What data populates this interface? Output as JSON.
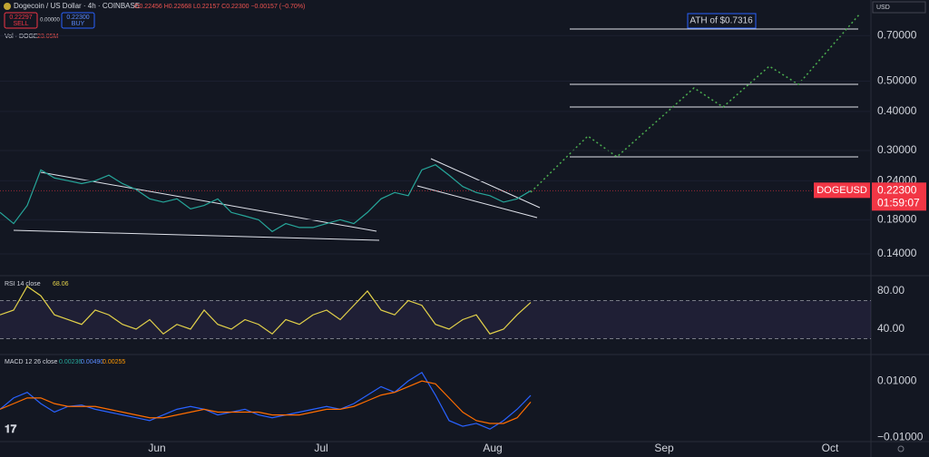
{
  "header": {
    "symbol": "Dogecoin / US Dollar · 4h · COINBASE",
    "ohlc": "O0.22456 H0.22668 L0.22157 C0.22300 −0.00157 (−0.70%)",
    "sell_price": "0.22297",
    "sell": "SELL",
    "spread": "0.00000",
    "buy_price": "0.22300",
    "buy": "BUY",
    "volume_label": "Vol · DOGE",
    "volume_value": "23.05M",
    "currency": "USD",
    "ath": "ATH of $0.7316"
  },
  "x_labels": [
    "Jun",
    "Jul",
    "Aug",
    "Sep",
    "Oct"
  ],
  "chart_data": [
    {
      "type": "line",
      "log_scale": true,
      "grid": true,
      "ylim": [
        0.12,
        0.91
      ],
      "yticks": [
        {
          "value": 0.7,
          "label": "0.70000"
        },
        {
          "value": 0.5,
          "label": "0.50000"
        },
        {
          "value": 0.4,
          "label": "0.40000"
        },
        {
          "value": 0.3,
          "label": "0.30000"
        },
        {
          "value": 0.24,
          "label": "0.24000"
        },
        {
          "value": 0.18,
          "label": "0.18000"
        },
        {
          "value": 0.14,
          "label": "0.14000"
        }
      ],
      "series": [
        {
          "name": "DOGEUSD",
          "color": "#26a69a",
          "values": [
            0.19,
            0.175,
            0.2,
            0.26,
            0.245,
            0.24,
            0.235,
            0.24,
            0.25,
            0.235,
            0.225,
            0.21,
            0.205,
            0.21,
            0.195,
            0.2,
            0.21,
            0.19,
            0.185,
            0.18,
            0.165,
            0.175,
            0.17,
            0.17,
            0.175,
            0.18,
            0.175,
            0.19,
            0.21,
            0.22,
            0.215,
            0.26,
            0.27,
            0.25,
            0.23,
            0.22,
            0.215,
            0.205,
            0.21,
            0.223
          ]
        }
      ],
      "last_price": {
        "value": 0.223,
        "label": "0.22300",
        "countdown": "01:59:07"
      }
    },
    {
      "type": "line",
      "title": "RSI 14 close",
      "value_label": "68.06",
      "ylim": [
        14.3,
        93.3
      ],
      "yticks": [
        {
          "value": 80,
          "label": "80.00"
        },
        {
          "value": 40,
          "label": "40.00"
        }
      ],
      "band": [
        30,
        70
      ],
      "series": [
        {
          "name": "RSI",
          "color": "#e3d24a",
          "values": [
            55,
            60,
            85,
            75,
            55,
            50,
            45,
            60,
            55,
            45,
            40,
            50,
            35,
            45,
            40,
            60,
            45,
            40,
            50,
            45,
            35,
            50,
            45,
            55,
            60,
            50,
            65,
            80,
            60,
            55,
            70,
            65,
            45,
            40,
            50,
            55,
            35,
            40,
            55,
            68.06
          ]
        }
      ]
    },
    {
      "type": "line",
      "title": "MACD 12 26 close",
      "value_labels": [
        "0.00236",
        "0.00490",
        "0.00255"
      ],
      "ylim": [
        -0.0111,
        0.0187
      ],
      "yticks": [
        {
          "value": 0.01,
          "label": "0.01000"
        },
        {
          "value": -0.01,
          "label": "−0.01000"
        }
      ],
      "series": [
        {
          "name": "MACD",
          "color": "#2962ff",
          "values": [
            0,
            0.004,
            0.006,
            0.002,
            -0.001,
            0.001,
            0.0015,
            0,
            -0.001,
            -0.002,
            -0.003,
            -0.004,
            -0.002,
            0,
            0.001,
            0,
            -0.002,
            -0.001,
            0,
            -0.002,
            -0.003,
            -0.002,
            -0.001,
            0,
            0.001,
            0,
            0.002,
            0.005,
            0.008,
            0.006,
            0.01,
            0.013,
            0.005,
            -0.004,
            -0.006,
            -0.005,
            -0.007,
            -0.004,
            0,
            0.0049
          ]
        },
        {
          "name": "Signal",
          "color": "#ff6d00",
          "values": [
            0,
            0.002,
            0.004,
            0.004,
            0.002,
            0.001,
            0.001,
            0.001,
            0,
            -0.001,
            -0.002,
            -0.003,
            -0.003,
            -0.002,
            -0.001,
            0,
            -0.001,
            -0.001,
            -0.001,
            -0.001,
            -0.002,
            -0.002,
            -0.002,
            -0.001,
            0,
            0,
            0.001,
            0.003,
            0.005,
            0.006,
            0.008,
            0.01,
            0.009,
            0.004,
            -0.001,
            -0.004,
            -0.005,
            -0.005,
            -0.003,
            0.00255
          ]
        }
      ]
    }
  ]
}
